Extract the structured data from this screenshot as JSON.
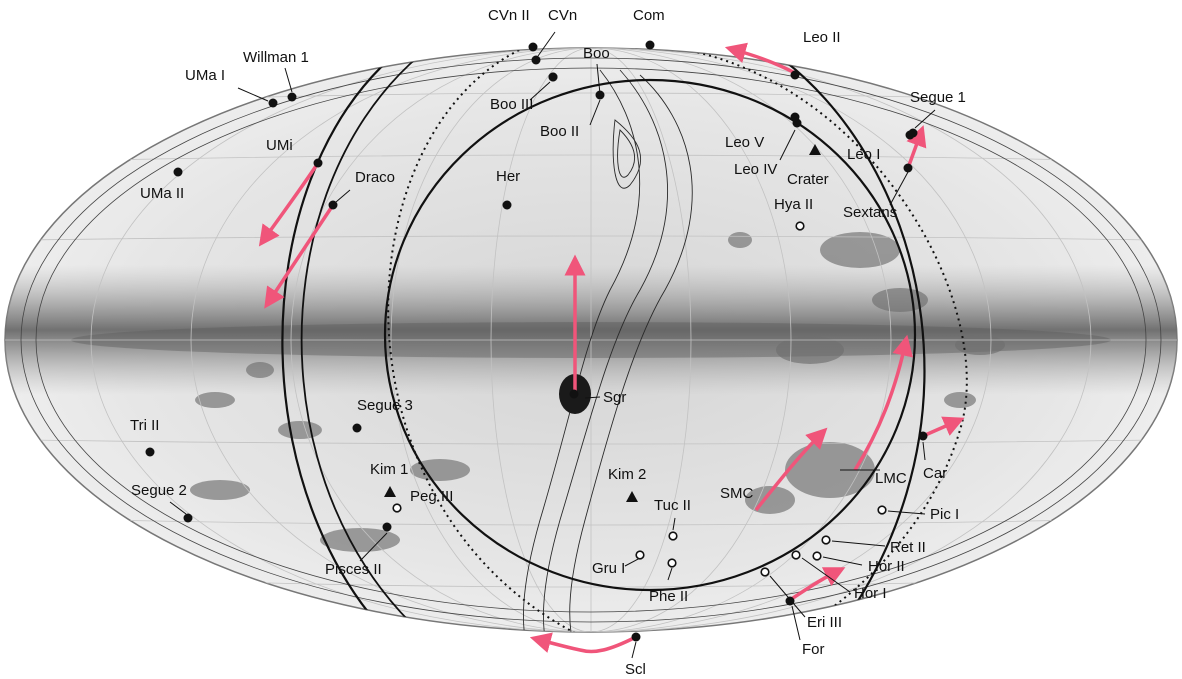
{
  "map": {
    "projection": "Aitoff / Hammer all-sky",
    "colors": {
      "sky_background": "#e4e4e4",
      "galactic_band": "#8a8a8a",
      "contour_line": "#222222",
      "great_circle": "#111111",
      "motion_arrow": "#f0557a",
      "filled_marker": "#111111",
      "open_marker": "#ffffff"
    },
    "objects": [
      {
        "name": "CVn II",
        "marker": "filled-circle"
      },
      {
        "name": "CVn",
        "marker": "filled-circle"
      },
      {
        "name": "Com",
        "marker": "filled-circle"
      },
      {
        "name": "Leo II",
        "marker": "filled-circle"
      },
      {
        "name": "Willman 1",
        "marker": "filled-circle"
      },
      {
        "name": "UMa I",
        "marker": "filled-circle"
      },
      {
        "name": "Boo",
        "marker": "filled-circle"
      },
      {
        "name": "Boo III",
        "marker": "filled-circle"
      },
      {
        "name": "Boo II",
        "marker": "filled-circle"
      },
      {
        "name": "Segue 1",
        "marker": "filled-circle"
      },
      {
        "name": "UMi",
        "marker": "filled-circle"
      },
      {
        "name": "Leo V",
        "marker": "filled-circle"
      },
      {
        "name": "Leo IV",
        "marker": "filled-circle"
      },
      {
        "name": "Crater",
        "marker": "triangle"
      },
      {
        "name": "Leo I",
        "marker": "filled-circle"
      },
      {
        "name": "UMa II",
        "marker": "filled-circle"
      },
      {
        "name": "Draco",
        "marker": "filled-circle"
      },
      {
        "name": "Her",
        "marker": "filled-circle"
      },
      {
        "name": "Hya II",
        "marker": "open-circle"
      },
      {
        "name": "Sextans",
        "marker": "filled-circle"
      },
      {
        "name": "Sgr",
        "marker": "filled-circle"
      },
      {
        "name": "Segue 3",
        "marker": "filled-circle"
      },
      {
        "name": "Tri II",
        "marker": "filled-circle"
      },
      {
        "name": "Car",
        "marker": "filled-circle"
      },
      {
        "name": "LMC",
        "marker": "none"
      },
      {
        "name": "Kim 1",
        "marker": "triangle"
      },
      {
        "name": "Peg III",
        "marker": "open-circle"
      },
      {
        "name": "Kim 2",
        "marker": "triangle"
      },
      {
        "name": "SMC",
        "marker": "none"
      },
      {
        "name": "Segue 2",
        "marker": "filled-circle"
      },
      {
        "name": "Tuc II",
        "marker": "open-circle"
      },
      {
        "name": "Pic I",
        "marker": "open-circle"
      },
      {
        "name": "Pisces II",
        "marker": "filled-circle"
      },
      {
        "name": "Ret II",
        "marker": "open-circle"
      },
      {
        "name": "Gru I",
        "marker": "open-circle"
      },
      {
        "name": "Hor II",
        "marker": "open-circle"
      },
      {
        "name": "Phe II",
        "marker": "open-circle"
      },
      {
        "name": "Hor I",
        "marker": "open-circle"
      },
      {
        "name": "Eri III",
        "marker": "open-circle"
      },
      {
        "name": "For",
        "marker": "filled-circle"
      },
      {
        "name": "Scl",
        "marker": "filled-circle"
      }
    ]
  }
}
